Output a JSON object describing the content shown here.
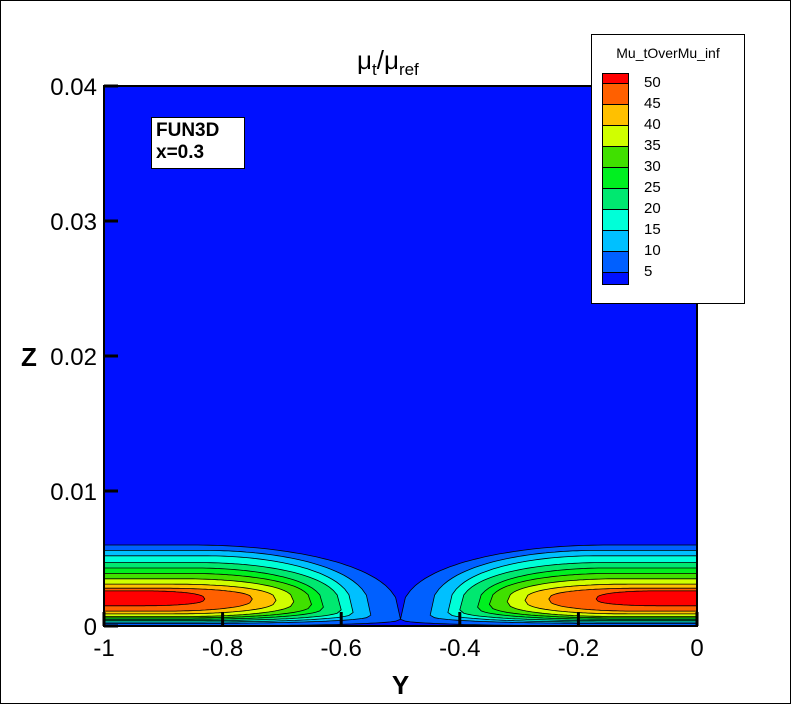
{
  "chart_data": {
    "type": "contour",
    "title": {
      "main1": "μ",
      "sub1": "t",
      "slash": "/",
      "main2": "μ",
      "sub2": "ref"
    },
    "xlabel": "Y",
    "ylabel": "Z",
    "xlim": [
      -1,
      0
    ],
    "ylim": [
      0,
      0.04
    ],
    "xticks": [
      -1,
      -0.8,
      -0.6,
      -0.4,
      -0.2,
      0
    ],
    "xtick_labels": [
      "-1",
      "-0.8",
      "-0.6",
      "-0.4",
      "-0.2",
      "0"
    ],
    "yticks": [
      0,
      0.01,
      0.02,
      0.03,
      0.04
    ],
    "ytick_labels": [
      "0",
      "0.01",
      "0.02",
      "0.03",
      "0.04"
    ],
    "annotation": [
      "FUN3D",
      "x=0.3"
    ],
    "legend": {
      "title": "Mu_tOverMu_inf",
      "position": "top-right",
      "levels": [
        "50",
        "45",
        "40",
        "35",
        "30",
        "25",
        "20",
        "15",
        "10",
        "5"
      ],
      "colors": [
        "#ff0000",
        "#ff6000",
        "#ffc000",
        "#d0ff00",
        "#40e000",
        "#00f020",
        "#00e870",
        "#00ffd8",
        "#00c0ff",
        "#0060ff",
        "#0010ff"
      ]
    },
    "background_color": "#0010ff",
    "contour_levels": [
      {
        "level": 5,
        "color": "#0060ff",
        "z_top": 0.006,
        "z_low": 0.0,
        "z_nose": 0.0005,
        "flat_to": 0.15,
        "reach": 0.5
      },
      {
        "level": 10,
        "color": "#00c0ff",
        "z_top": 0.0056,
        "z_low": 0.0002,
        "z_nose": 0.0008,
        "flat_to": 0.17,
        "reach": 0.45
      },
      {
        "level": 15,
        "color": "#00ffd8",
        "z_top": 0.0052,
        "z_low": 0.0003,
        "z_nose": 0.001,
        "flat_to": 0.17,
        "reach": 0.42
      },
      {
        "level": 20,
        "color": "#00e870",
        "z_top": 0.0047,
        "z_low": 0.0004,
        "z_nose": 0.0012,
        "flat_to": 0.16,
        "reach": 0.4
      },
      {
        "level": 25,
        "color": "#00f020",
        "z_top": 0.0043,
        "z_low": 0.0005,
        "z_nose": 0.0014,
        "flat_to": 0.15,
        "reach": 0.37
      },
      {
        "level": 30,
        "color": "#40e000",
        "z_top": 0.0039,
        "z_low": 0.0006,
        "z_nose": 0.0016,
        "flat_to": 0.14,
        "reach": 0.35
      },
      {
        "level": 35,
        "color": "#d0ff00",
        "z_top": 0.0035,
        "z_low": 0.0007,
        "z_nose": 0.0018,
        "flat_to": 0.13,
        "reach": 0.32
      },
      {
        "level": 40,
        "color": "#ffc000",
        "z_top": 0.0031,
        "z_low": 0.0009,
        "z_nose": 0.0019,
        "flat_to": 0.12,
        "reach": 0.29
      },
      {
        "level": 45,
        "color": "#ff6000",
        "z_top": 0.0028,
        "z_low": 0.0011,
        "z_nose": 0.002,
        "flat_to": 0.1,
        "reach": 0.25
      },
      {
        "level": 50,
        "color": "#ff0000",
        "z_top": 0.0026,
        "z_low": 0.0015,
        "z_nose": 0.002,
        "flat_to": 0.07,
        "reach": 0.17
      }
    ]
  }
}
